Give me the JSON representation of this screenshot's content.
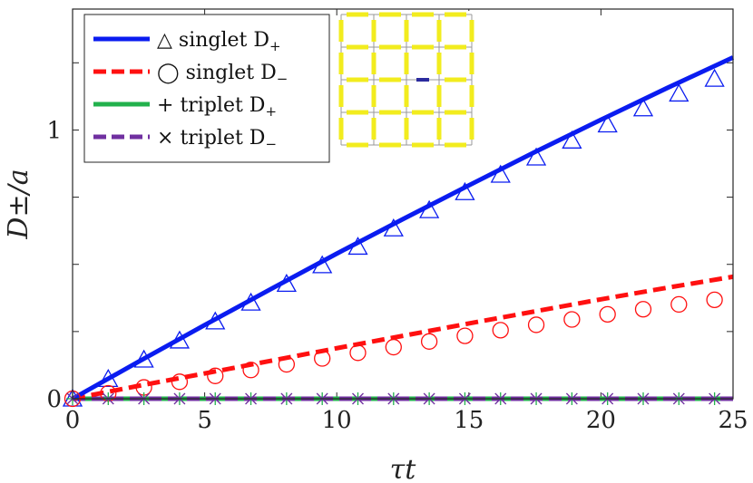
{
  "chart_data": {
    "type": "line",
    "xlabel": "τt",
    "ylabel": "D±/a",
    "xlim": [
      0,
      25
    ],
    "ylim": [
      0,
      1.45
    ],
    "xticks": [
      0,
      5,
      10,
      15,
      20,
      25
    ],
    "xtick_labels": [
      "0",
      "5",
      "10",
      "15",
      "20",
      "25"
    ],
    "yticks": [
      0,
      1
    ],
    "ytick_labels": [
      "0",
      "1"
    ],
    "legend_position": "top-left",
    "colors": {
      "singlet_plus": "#0a1cf0",
      "singlet_minus": "#ff1010",
      "triplet_plus": "#22b14c",
      "triplet_minus": "#7030a0",
      "inset_bond": "#f2ec1e",
      "inset_center": "#2b2b9e",
      "inset_grid": "#999999"
    },
    "series": [
      {
        "name": "singlet D+ (line)",
        "style": "solid",
        "color": "#0a1cf0",
        "x": [
          0,
          2.5,
          5,
          7.5,
          10,
          12.5,
          15,
          17.5,
          20,
          22.5,
          25
        ],
        "values": [
          0,
          0.138,
          0.274,
          0.408,
          0.54,
          0.668,
          0.794,
          0.918,
          1.038,
          1.156,
          1.27
        ]
      },
      {
        "name": "singlet D- (line)",
        "style": "dashed",
        "color": "#ff1010",
        "x": [
          0,
          2.5,
          5,
          7.5,
          10,
          12.5,
          15,
          17.5,
          20,
          22.5,
          25
        ],
        "values": [
          0,
          0.048,
          0.094,
          0.141,
          0.188,
          0.234,
          0.28,
          0.325,
          0.37,
          0.413,
          0.454
        ]
      },
      {
        "name": "triplet D+ (line)",
        "style": "solid",
        "color": "#22b14c",
        "x": [
          0,
          25
        ],
        "values": [
          0,
          0
        ]
      },
      {
        "name": "triplet D- (line)",
        "style": "dashed",
        "color": "#7030a0",
        "x": [
          0,
          25
        ],
        "values": [
          0,
          0
        ]
      },
      {
        "name": "singlet D+ (markers)",
        "marker": "triangle",
        "color": "#0a1cf0",
        "x": [
          0,
          1.35,
          2.7,
          4.05,
          5.4,
          6.75,
          8.1,
          9.45,
          10.8,
          12.15,
          13.5,
          14.85,
          16.2,
          17.55,
          18.9,
          20.25,
          21.6,
          22.95,
          24.3
        ],
        "values": [
          0,
          0.073,
          0.145,
          0.216,
          0.287,
          0.357,
          0.427,
          0.496,
          0.565,
          0.633,
          0.701,
          0.768,
          0.833,
          0.897,
          0.96,
          1.02,
          1.08,
          1.135,
          1.19
        ]
      },
      {
        "name": "singlet D- (markers)",
        "marker": "circle",
        "color": "#ff1010",
        "x": [
          0,
          1.35,
          2.7,
          4.05,
          5.4,
          6.75,
          8.1,
          9.45,
          10.8,
          12.15,
          13.5,
          14.85,
          16.2,
          17.55,
          18.9,
          20.25,
          21.6,
          22.95,
          24.3
        ],
        "values": [
          0,
          0.02,
          0.042,
          0.063,
          0.085,
          0.107,
          0.128,
          0.15,
          0.171,
          0.192,
          0.213,
          0.234,
          0.255,
          0.275,
          0.295,
          0.314,
          0.333,
          0.351,
          0.368
        ]
      },
      {
        "name": "triplet D+ (markers)",
        "marker": "plus",
        "color": "#22b14c",
        "x": [
          0,
          1.35,
          2.7,
          4.05,
          5.4,
          6.75,
          8.1,
          9.45,
          10.8,
          12.15,
          13.5,
          14.85,
          16.2,
          17.55,
          18.9,
          20.25,
          21.6,
          22.95,
          24.3
        ],
        "values": [
          0,
          0,
          0,
          0,
          0,
          0,
          0,
          0,
          0,
          0,
          0,
          0,
          0,
          0,
          0,
          0,
          0,
          0,
          0
        ]
      },
      {
        "name": "triplet D- (markers)",
        "marker": "cross",
        "color": "#7030a0",
        "x": [
          0,
          1.35,
          2.7,
          4.05,
          5.4,
          6.75,
          8.1,
          9.45,
          10.8,
          12.15,
          13.5,
          14.85,
          16.2,
          17.55,
          18.9,
          20.25,
          21.6,
          22.95,
          24.3
        ],
        "values": [
          0,
          0,
          0,
          0,
          0,
          0,
          0,
          0,
          0,
          0,
          0,
          0,
          0,
          0,
          0,
          0,
          0,
          0,
          0
        ]
      }
    ],
    "legend": [
      {
        "symbol": "△",
        "label": "singlet D",
        "sub": "+",
        "line_style": "solid",
        "color": "#0a1cf0"
      },
      {
        "symbol": "◯",
        "label": "singlet D",
        "sub": "−",
        "line_style": "dashed",
        "color": "#ff1010"
      },
      {
        "symbol": "+",
        "label": "triplet D",
        "sub": "+",
        "line_style": "solid",
        "color": "#22b14c"
      },
      {
        "symbol": "×",
        "label": "triplet D",
        "sub": "−",
        "line_style": "dashed",
        "color": "#7030a0"
      }
    ],
    "inset": {
      "description": "bond lattice",
      "rows": 4,
      "cols": 4
    }
  }
}
